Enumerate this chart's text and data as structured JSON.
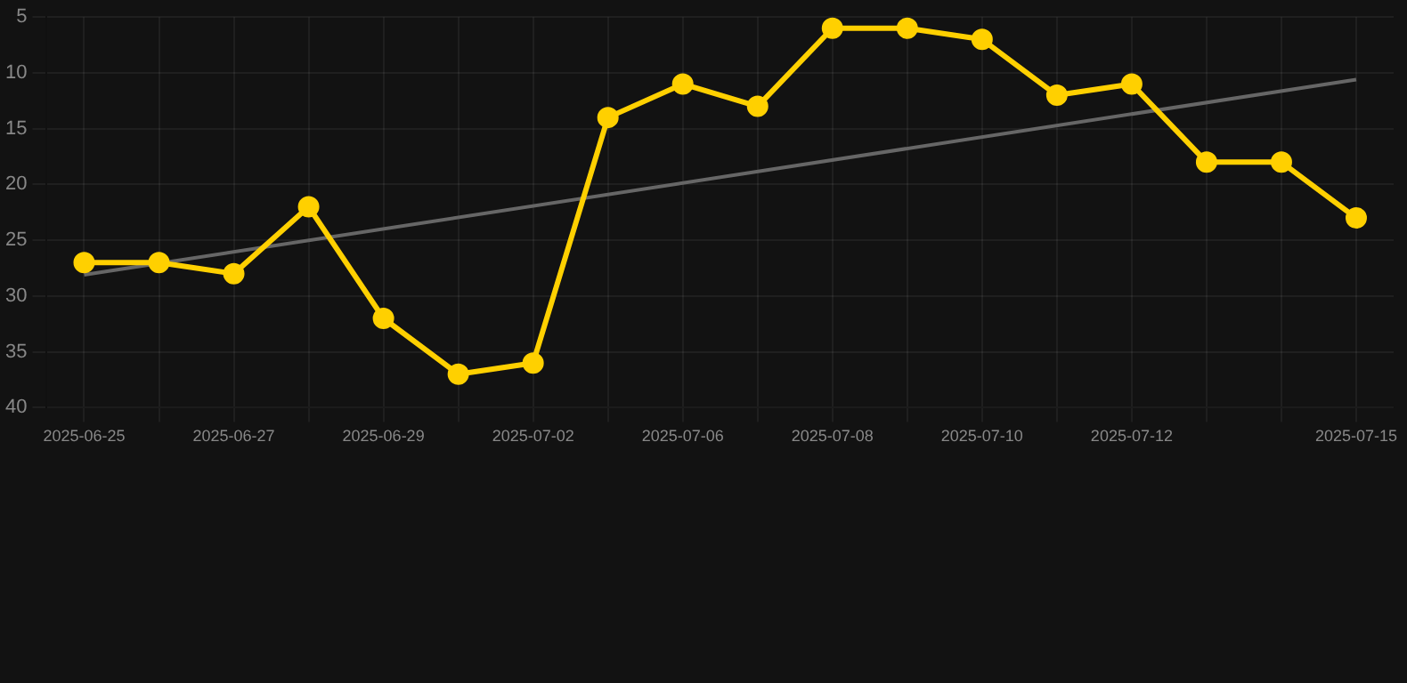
{
  "chart_data": {
    "type": "line",
    "categories": [
      "2025-06-25",
      null,
      "2025-06-27",
      null,
      "2025-06-29",
      null,
      "2025-07-02",
      null,
      "2025-07-06",
      null,
      "2025-07-08",
      null,
      "2025-07-10",
      null,
      "2025-07-12",
      null,
      null,
      "2025-07-15"
    ],
    "series": [
      {
        "color": "#ffd000",
        "values": [
          27,
          27,
          28,
          22,
          32,
          37,
          36,
          14,
          11,
          13,
          6,
          6,
          7,
          12,
          11,
          18,
          18,
          23
        ],
        "marker": "circle"
      },
      {
        "type": "line",
        "color": "#666666",
        "values": [
          28.1,
          null,
          null,
          null,
          null,
          null,
          null,
          null,
          null,
          null,
          null,
          null,
          null,
          null,
          null,
          null,
          null,
          10.6
        ],
        "marker": "none"
      }
    ],
    "ylim": [
      40,
      5
    ],
    "yticks": [
      5,
      10,
      15,
      20,
      25,
      30,
      35,
      40
    ],
    "grid": true,
    "legend": false
  }
}
